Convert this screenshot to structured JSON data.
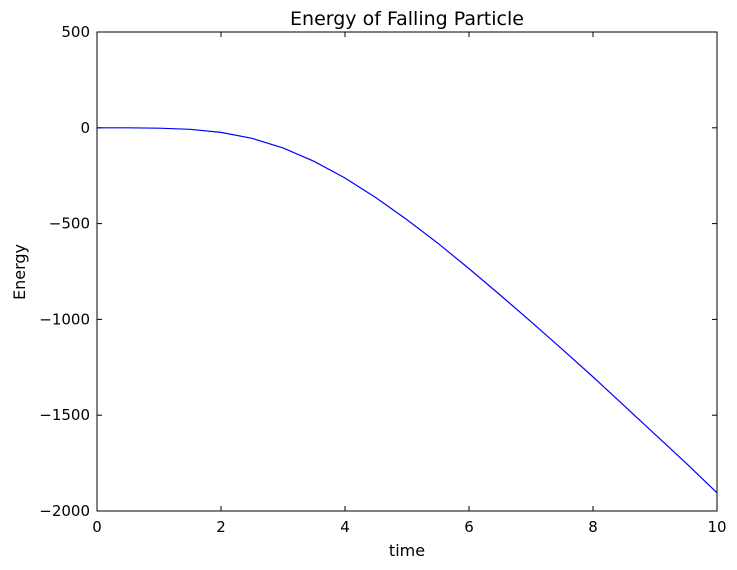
{
  "chart_data": {
    "type": "line",
    "title": "Energy of Falling Particle",
    "xlabel": "time",
    "ylabel": "Energy",
    "xlim": [
      0,
      10
    ],
    "ylim": [
      -2000,
      500
    ],
    "xticks": [
      0,
      2,
      4,
      6,
      8,
      10
    ],
    "yticks": [
      500,
      0,
      -500,
      -1000,
      -1500,
      -2000
    ],
    "xtick_labels": [
      "0",
      "2",
      "4",
      "6",
      "8",
      "10"
    ],
    "ytick_labels": [
      "500",
      "0",
      "−500",
      "−1000",
      "−1500",
      "−2000"
    ],
    "grid": false,
    "legend": "none",
    "series": [
      {
        "color": "#0000ff",
        "x": [
          0,
          0.5,
          1,
          1.5,
          2,
          2.5,
          3,
          3.5,
          4,
          4.5,
          5,
          5.5,
          6,
          6.5,
          7,
          7.5,
          8,
          8.5,
          9,
          9.5,
          10
        ],
        "y": [
          0,
          0,
          -2,
          -8,
          -24,
          -55,
          -105,
          -175,
          -262,
          -365,
          -480,
          -603,
          -735,
          -872,
          -1012,
          -1155,
          -1300,
          -1450,
          -1600,
          -1750,
          -1905
        ]
      }
    ]
  }
}
